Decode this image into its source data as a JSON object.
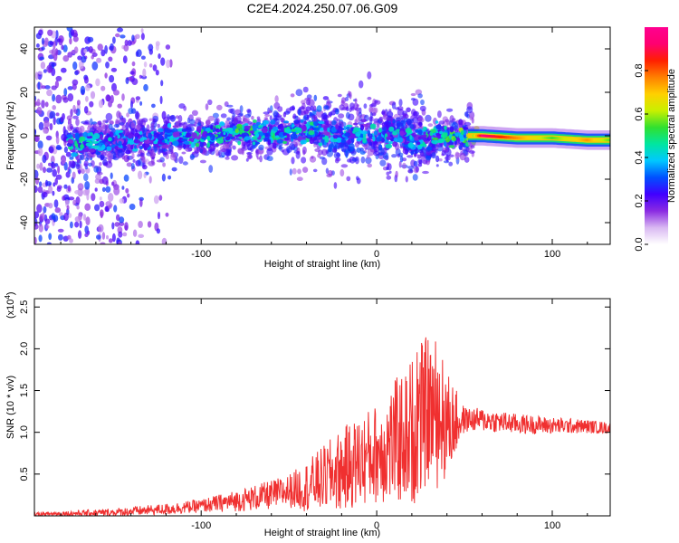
{
  "title": "C2E4.2024.250.07.06.G09",
  "chart_data": [
    {
      "type": "heatmap",
      "xlabel": "Height of straight line (km)",
      "ylabel": "Frequency (Hz)",
      "xlim": [
        -195,
        133
      ],
      "ylim": [
        -50,
        50
      ],
      "x_ticks": [
        -100,
        0,
        100
      ],
      "y_ticks": [
        -40,
        -20,
        0,
        20,
        40
      ],
      "grid": false,
      "colorbar": {
        "label": "Normalized spectral amplitude",
        "range": [
          0,
          1
        ],
        "ticks": [
          "0.0",
          "0.2",
          "0.4",
          "0.6",
          "0.8"
        ],
        "colors": [
          "#ffffff",
          "#d9b8f2",
          "#8a2be2",
          "#4000ff",
          "#0050ff",
          "#00c8ff",
          "#00e6a0",
          "#30e030",
          "#c8f000",
          "#ffd000",
          "#ff8000",
          "#ff2000",
          "#ff0070",
          "#ff0090"
        ]
      },
      "ridge": [
        {
          "x": -170,
          "f": -4,
          "a": 0.45
        },
        {
          "x": -150,
          "f": -3,
          "a": 0.4
        },
        {
          "x": -130,
          "f": -2,
          "a": 0.35
        },
        {
          "x": -100,
          "f": 0,
          "a": 0.45
        },
        {
          "x": -80,
          "f": 2,
          "a": 0.5
        },
        {
          "x": -60,
          "f": 1,
          "a": 0.45
        },
        {
          "x": -40,
          "f": 2,
          "a": 0.45
        },
        {
          "x": -20,
          "f": 2,
          "a": 0.4
        },
        {
          "x": 0,
          "f": 0,
          "a": 0.4
        },
        {
          "x": 20,
          "f": -1,
          "a": 0.4
        },
        {
          "x": 40,
          "f": 0,
          "a": 0.5
        },
        {
          "x": 55,
          "f": 0,
          "a": 0.6
        },
        {
          "x": 60,
          "f": 0,
          "a": 0.95
        },
        {
          "x": 80,
          "f": -1,
          "a": 0.75
        },
        {
          "x": 100,
          "f": -1,
          "a": 0.55
        },
        {
          "x": 120,
          "f": -2,
          "a": 0.75
        },
        {
          "x": 133,
          "f": -2,
          "a": 0.55
        }
      ]
    },
    {
      "type": "line",
      "xlabel": "Height of straight line (km)",
      "ylabel": "SNR (10 * v/v)",
      "y_multiplier": "(x10",
      "y_multiplier_exp": "4",
      "xlim": [
        -195,
        133
      ],
      "ylim": [
        0,
        2.6
      ],
      "x_ticks": [
        -100,
        0,
        100
      ],
      "y_ticks": [
        0.5,
        1.0,
        1.5,
        2.0,
        2.5
      ],
      "grid": false,
      "color": "#f03030",
      "envelope": [
        {
          "x": -195,
          "y": 0.02
        },
        {
          "x": -150,
          "y": 0.04
        },
        {
          "x": -120,
          "y": 0.08
        },
        {
          "x": -100,
          "y": 0.12
        },
        {
          "x": -80,
          "y": 0.18
        },
        {
          "x": -60,
          "y": 0.25
        },
        {
          "x": -40,
          "y": 0.35
        },
        {
          "x": -20,
          "y": 0.55
        },
        {
          "x": 0,
          "y": 0.75
        },
        {
          "x": 20,
          "y": 1.0
        },
        {
          "x": 30,
          "y": 1.3
        },
        {
          "x": 40,
          "y": 1.1
        },
        {
          "x": 50,
          "y": 1.15
        },
        {
          "x": 60,
          "y": 1.15
        },
        {
          "x": 80,
          "y": 1.1
        },
        {
          "x": 100,
          "y": 1.08
        },
        {
          "x": 120,
          "y": 1.07
        },
        {
          "x": 133,
          "y": 1.05
        }
      ],
      "spread": [
        {
          "x": -195,
          "s": 0.02
        },
        {
          "x": -100,
          "s": 0.08
        },
        {
          "x": -50,
          "s": 0.2
        },
        {
          "x": -20,
          "s": 0.5
        },
        {
          "x": 0,
          "s": 0.6
        },
        {
          "x": 20,
          "s": 0.9
        },
        {
          "x": 35,
          "s": 0.9
        },
        {
          "x": 50,
          "s": 0.15
        },
        {
          "x": 133,
          "s": 0.07
        }
      ]
    }
  ]
}
